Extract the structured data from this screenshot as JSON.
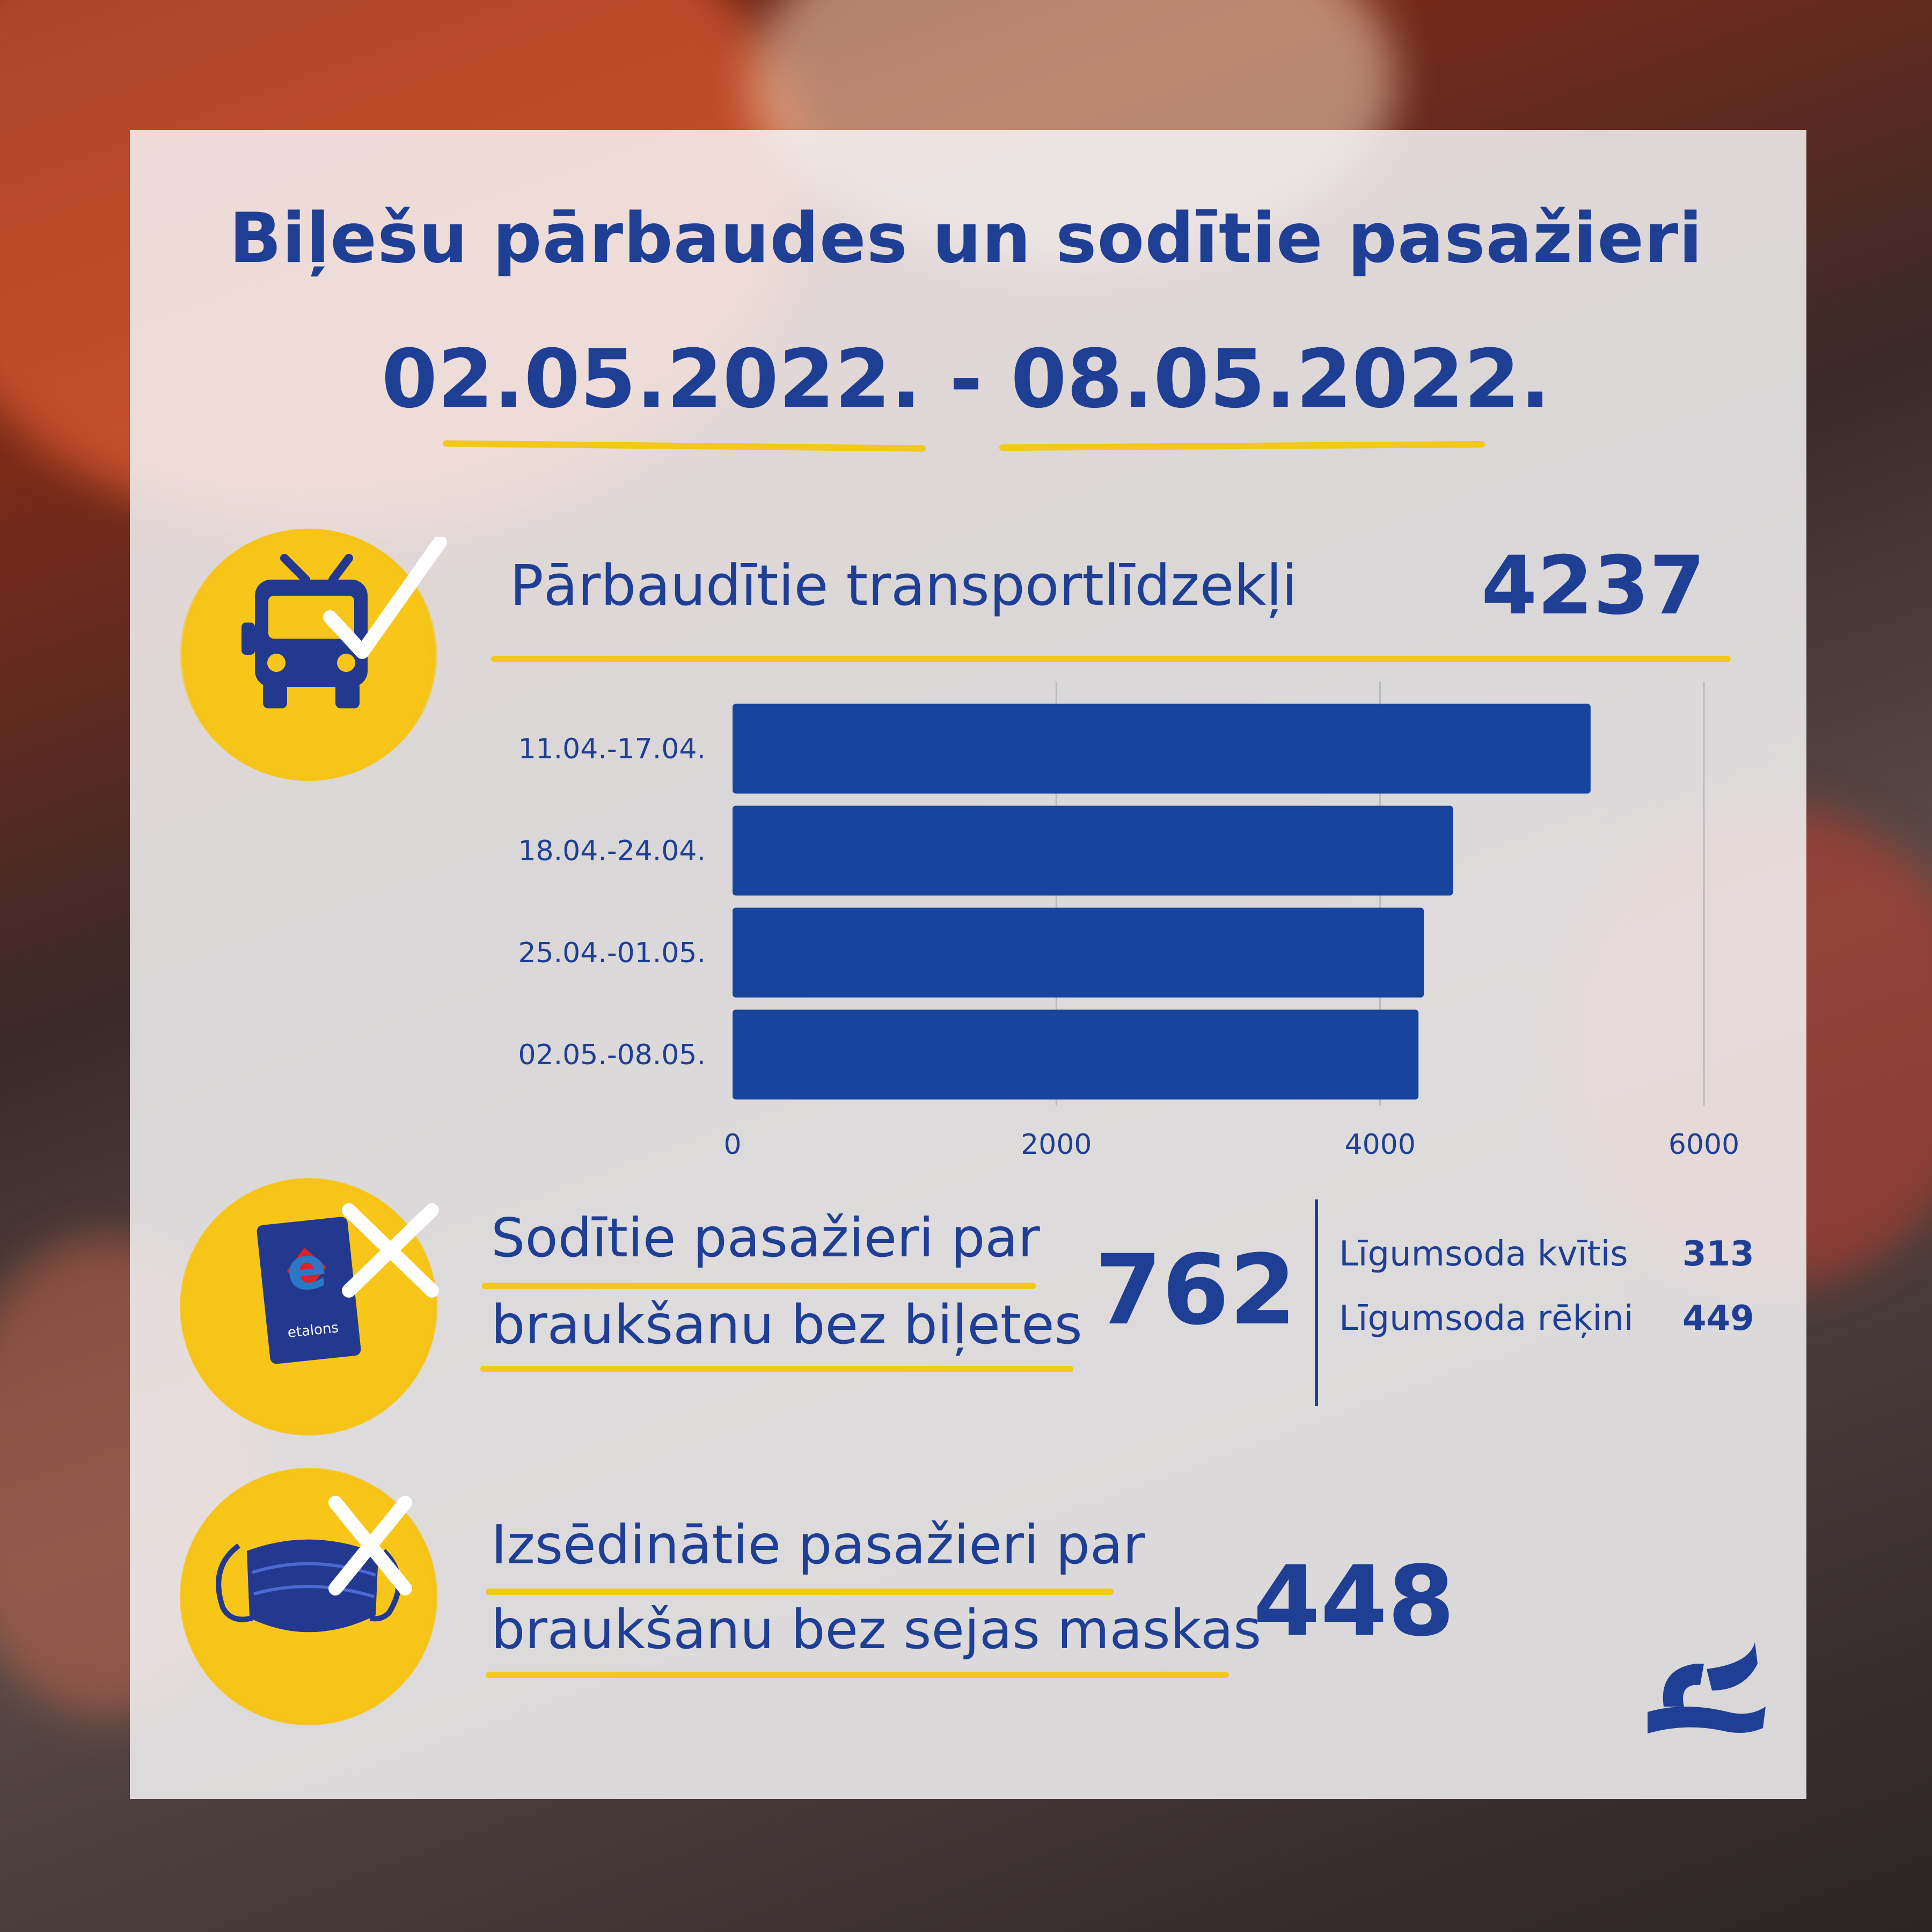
{
  "title_line1": "Biļešu pārbaudes un sodītie pasažieri",
  "title_line2": "02.05.2022. - 08.05.2022.",
  "section_vehicles": {
    "label": "Pārbaudītie transportlīdzekļi",
    "value": "4237"
  },
  "section_fined": {
    "label_line1": "Sodītie pasažieri par",
    "label_line2": "braukšanu bez biļetes",
    "value": "762",
    "receipts_label": "Līgumsoda kvītis",
    "receipts_value": "313",
    "invoices_label": "Līgumsoda rēķini",
    "invoices_value": "449",
    "card_brand": "etalons"
  },
  "section_mask": {
    "label_line1": "Izsēdinātie pasažieri par",
    "label_line2": "braukšanu bez sejas maskas",
    "value": "448"
  },
  "colors": {
    "brand_blue": "#1f3f95",
    "bar_blue": "#17449c",
    "accent_yellow": "#f7c618"
  },
  "icons": [
    "bus-check-icon",
    "etalons-card-x-icon",
    "mask-x-icon",
    "rs-logo-icon"
  ],
  "chart_data": {
    "type": "bar",
    "orientation": "horizontal",
    "categories": [
      "11.04.-17.04.",
      "18.04.-24.04.",
      "25.04.-01.05.",
      "02.05.-08.05."
    ],
    "values": [
      5300,
      4450,
      4270,
      4237
    ],
    "xlim": [
      0,
      6000
    ],
    "xticks": [
      "0",
      "2000",
      "4000",
      "6000"
    ],
    "grid": true,
    "title": "",
    "xlabel": "",
    "ylabel": ""
  }
}
